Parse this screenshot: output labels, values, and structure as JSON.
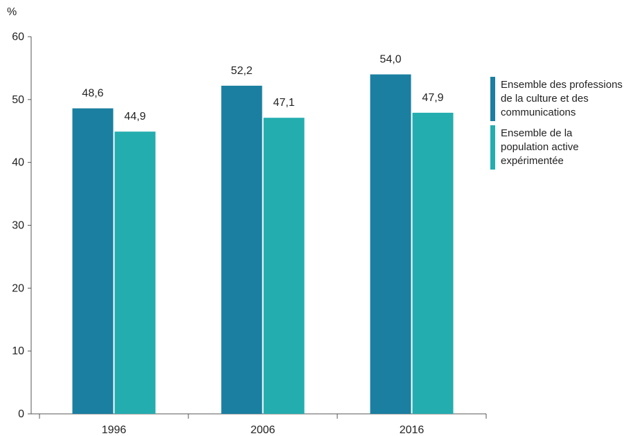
{
  "chart_data": {
    "type": "bar",
    "ylabel": "%",
    "ylim": [
      0,
      60
    ],
    "yticks": [
      0,
      10,
      20,
      30,
      40,
      50,
      60
    ],
    "categories": [
      "1996",
      "2006",
      "2016"
    ],
    "series": [
      {
        "name": "Ensemble des professions de la culture et des communications",
        "legend_lines": [
          "Ensemble des professions",
          "de la culture et des",
          "communications"
        ],
        "values": [
          48.6,
          52.2,
          54.0
        ],
        "labels": [
          "48,6",
          "52,2",
          "54,0"
        ],
        "color": "#1a7fa0"
      },
      {
        "name": "Ensemble de la population active expérimentée",
        "legend_lines": [
          "Ensemble de la",
          "population active",
          "expérimentée"
        ],
        "values": [
          44.9,
          47.1,
          47.9
        ],
        "labels": [
          "44,9",
          "47,1",
          "47,9"
        ],
        "color": "#24adaf"
      }
    ],
    "grid": false,
    "legend_position": "right"
  }
}
